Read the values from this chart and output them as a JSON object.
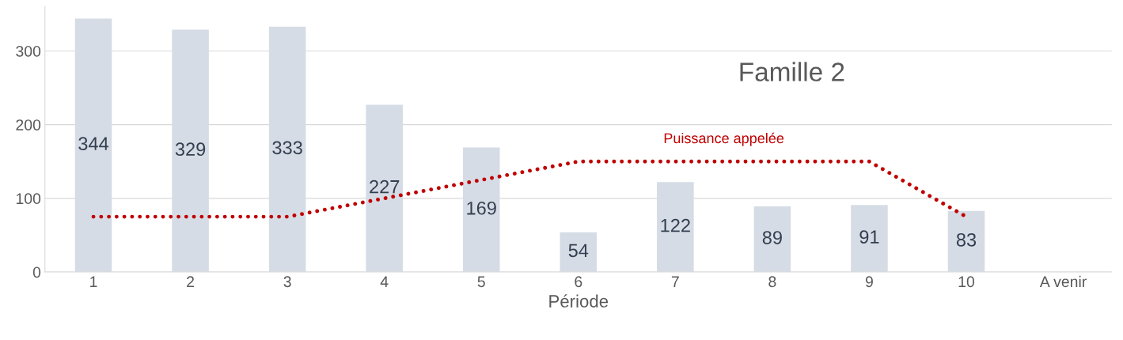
{
  "chart_data": {
    "type": "bar",
    "title": "Famille 2",
    "xlabel": "Période",
    "categories": [
      "1",
      "2",
      "3",
      "4",
      "5",
      "6",
      "7",
      "8",
      "9",
      "10",
      "A venir"
    ],
    "series": [
      {
        "color": "#d6dce5",
        "values": [
          344,
          329,
          333,
          227,
          169,
          54,
          122,
          89,
          91,
          83,
          null
        ],
        "value_labels": [
          "344",
          "329",
          "333",
          "227",
          "169",
          "54",
          "122",
          "89",
          "91",
          "83",
          null
        ]
      },
      {
        "type": "line",
        "name": "Puissance appelée",
        "color": "#c00000",
        "line_style": "dotted",
        "marker": "none",
        "values": [
          75,
          75,
          75,
          100,
          125,
          150,
          150,
          150,
          150,
          75,
          null
        ]
      }
    ],
    "ylim": [
      0,
      360
    ],
    "yticks": [
      0,
      100,
      200,
      300
    ],
    "grid": "y",
    "legend": false
  }
}
